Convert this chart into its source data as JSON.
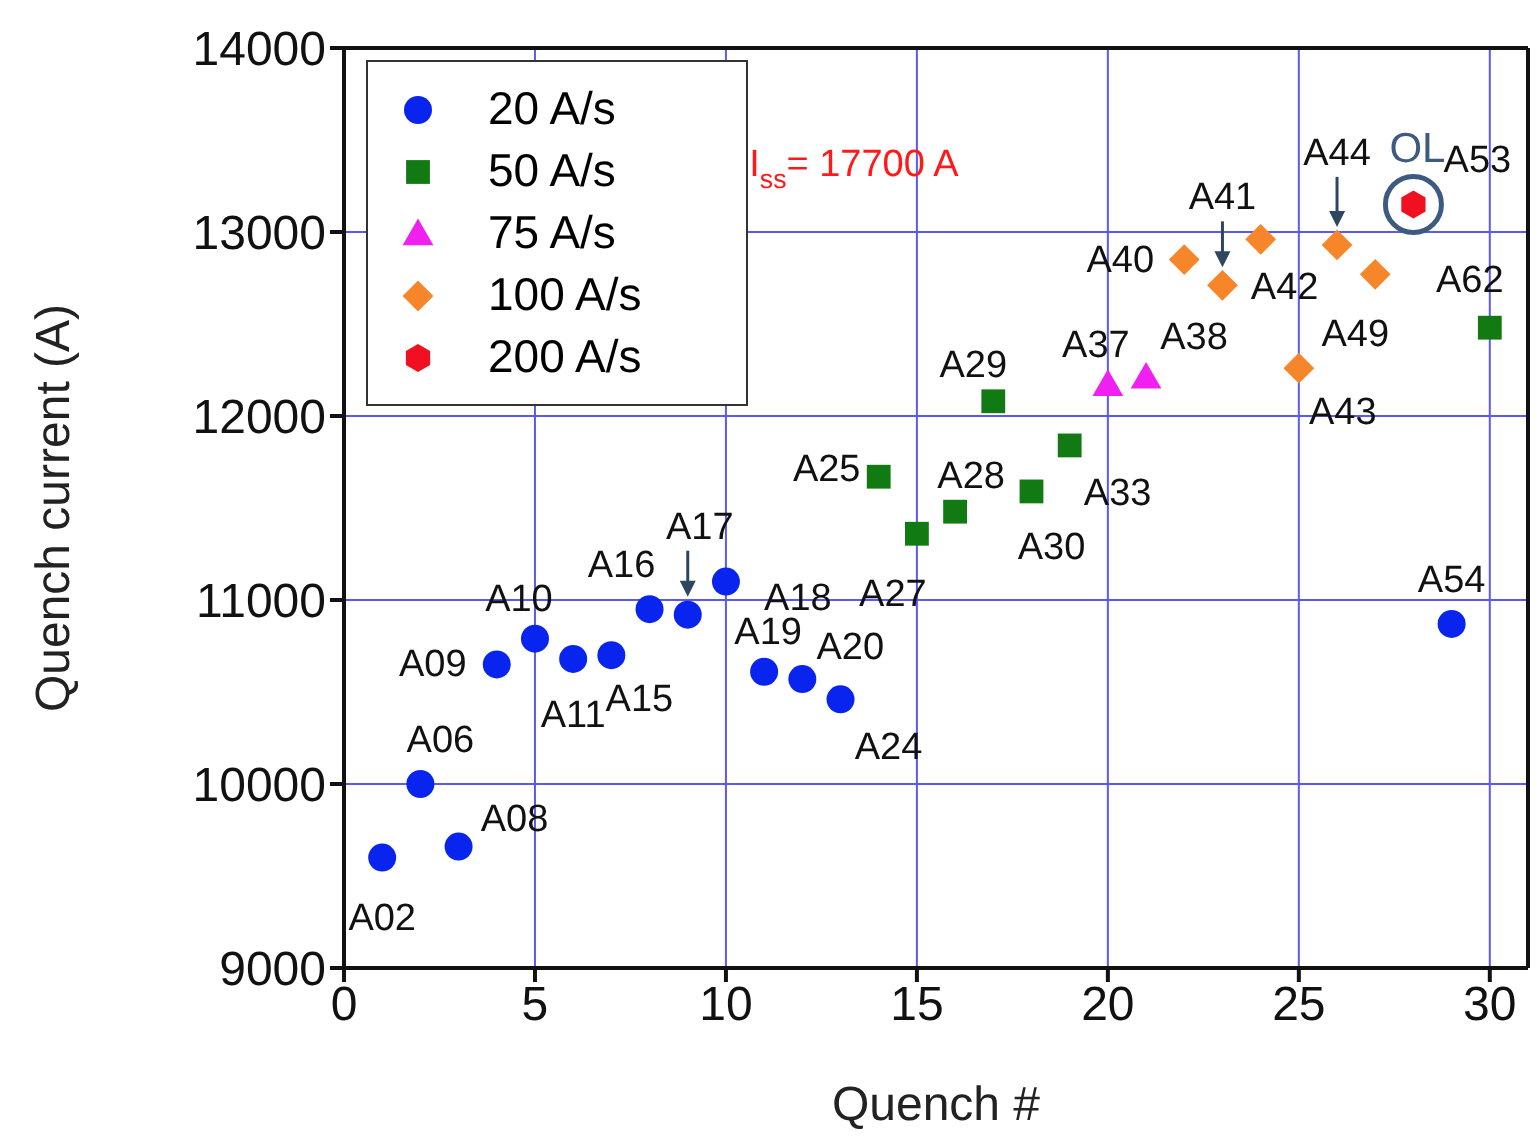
{
  "chart_data": {
    "type": "scatter",
    "xlabel": "Quench #",
    "ylabel": "Quench current (A)",
    "xlim": [
      0,
      31
    ],
    "ylim": [
      9000,
      14000
    ],
    "xticks": [
      0,
      5,
      10,
      15,
      20,
      25,
      30
    ],
    "yticks": [
      9000,
      10000,
      11000,
      12000,
      13000,
      14000
    ],
    "grid": true,
    "legend": "top left",
    "series": [
      {
        "name": "20 A/s",
        "color": "#0a24f0",
        "marker": "circle",
        "x": [
          1,
          2,
          3,
          4,
          5,
          6,
          7,
          8,
          9,
          10,
          11,
          12,
          13,
          29
        ],
        "values": [
          9600,
          10000,
          9660,
          10650,
          10790,
          10680,
          10700,
          10950,
          10920,
          11100,
          10610,
          10570,
          10460,
          10870
        ]
      },
      {
        "name": "50 A/s",
        "color": "#127a12",
        "marker": "square",
        "x": [
          14,
          15,
          16,
          17,
          18,
          19,
          30
        ],
        "values": [
          11670,
          11360,
          11480,
          12080,
          11590,
          11840,
          12480
        ]
      },
      {
        "name": "75 A/s",
        "color": "#f020f0",
        "marker": "triangle",
        "x": [
          20,
          21
        ],
        "values": [
          12170,
          12210
        ]
      },
      {
        "name": "100 A/s",
        "color": "#f7862a",
        "marker": "diamond",
        "x": [
          22,
          23,
          24,
          25,
          26,
          27
        ],
        "values": [
          12850,
          12710,
          12960,
          12260,
          12930,
          12770
        ]
      },
      {
        "name": "200 A/s",
        "color": "#f01020",
        "x": [
          28
        ],
        "values": [
          13150
        ]
      }
    ],
    "annotations": [
      "I$_{ss}$= 17700 A",
      {
        "text": "A02",
        "x": 1,
        "y": 9600
      },
      {
        "text": "A06",
        "x": 2,
        "y": 10000
      },
      {
        "text": "A08",
        "x": 3,
        "y": 9660
      },
      {
        "text": "A09",
        "x": 4,
        "y": 10650
      },
      {
        "text": "A10",
        "x": 5,
        "y": 10790
      },
      {
        "text": "A11",
        "x": 6,
        "y": 10680
      },
      {
        "text": "A15",
        "x": 7,
        "y": 10700
      },
      {
        "text": "A16",
        "x": 8,
        "y": 10950
      },
      {
        "text": "A17",
        "x": 9,
        "y": 10920
      },
      {
        "text": "A18",
        "x": 10,
        "y": 11100
      },
      {
        "text": "A19",
        "x": 11,
        "y": 10610
      },
      {
        "text": "A20",
        "x": 12,
        "y": 10570
      },
      {
        "text": "A24",
        "x": 13,
        "y": 10460
      },
      {
        "text": "A25",
        "x": 14,
        "y": 11670
      },
      {
        "text": "A27",
        "x": 15,
        "y": 11360
      },
      {
        "text": "A28",
        "x": 16,
        "y": 11480
      },
      {
        "text": "A29",
        "x": 17,
        "y": 12080
      },
      {
        "text": "A30",
        "x": 18,
        "y": 11590
      },
      {
        "text": "A33",
        "x": 19,
        "y": 11840
      },
      {
        "text": "A37",
        "x": 20,
        "y": 12170
      },
      {
        "text": "A38",
        "x": 21,
        "y": 12210
      },
      {
        "text": "A40",
        "x": 22,
        "y": 12850
      },
      {
        "text": "A41",
        "x": 23,
        "y": 12710
      },
      {
        "text": "A42",
        "x": 24,
        "y": 12960
      },
      {
        "text": "A43",
        "x": 25,
        "y": 12260
      },
      {
        "text": "A44",
        "x": 26,
        "y": 12930
      },
      {
        "text": "A49",
        "x": 27,
        "y": 12770
      },
      {
        "text": "A53",
        "x": 28,
        "y": 13150
      },
      {
        "text": "A54",
        "x": 29,
        "y": 10870
      },
      {
        "text": "A62",
        "x": 30,
        "y": 12480
      },
      {
        "text": "OL",
        "x": 28,
        "y": 13150
      }
    ]
  }
}
